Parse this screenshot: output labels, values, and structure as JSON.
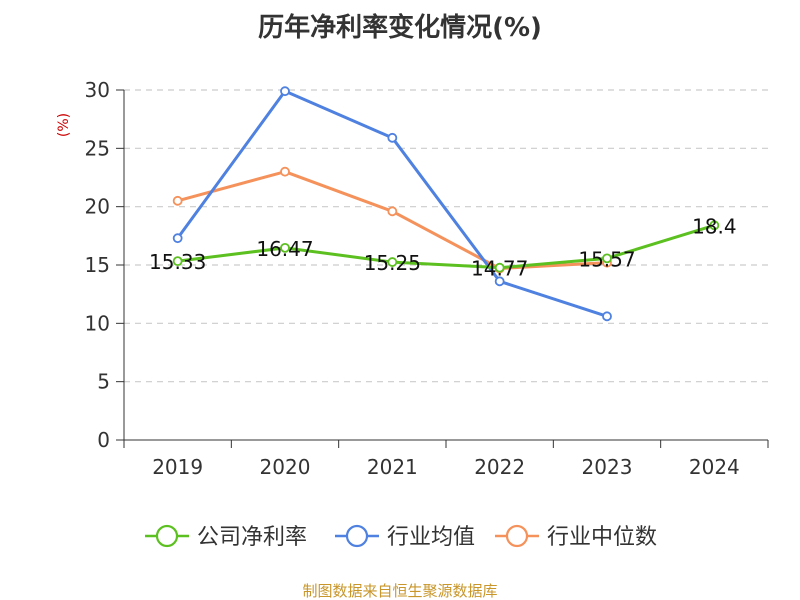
{
  "chart_data": {
    "type": "line",
    "title": "历年净利率变化情况(%)",
    "ylabel": "(%)",
    "categories": [
      "2019",
      "2020",
      "2021",
      "2022",
      "2023",
      "2024"
    ],
    "ylim": [
      0,
      30
    ],
    "yticks": [
      0,
      5,
      10,
      15,
      20,
      25,
      30
    ],
    "grid": true,
    "legend_position": "bottom",
    "series": [
      {
        "name": "公司净利率",
        "color": "#5cc020",
        "values": [
          15.33,
          16.47,
          15.25,
          14.77,
          15.57,
          18.4
        ],
        "labels": [
          "15.33",
          "16.47",
          "15.25",
          "14.77",
          "15.57",
          "18.4"
        ]
      },
      {
        "name": "行业均值",
        "color": "#4f81e0",
        "values": [
          17.3,
          29.9,
          25.9,
          13.6,
          10.6,
          null
        ]
      },
      {
        "name": "行业中位数",
        "color": "#f5915a",
        "values": [
          20.5,
          23.0,
          19.6,
          14.7,
          15.2,
          null
        ]
      }
    ]
  },
  "source": "制图数据来自恒生聚源数据库"
}
